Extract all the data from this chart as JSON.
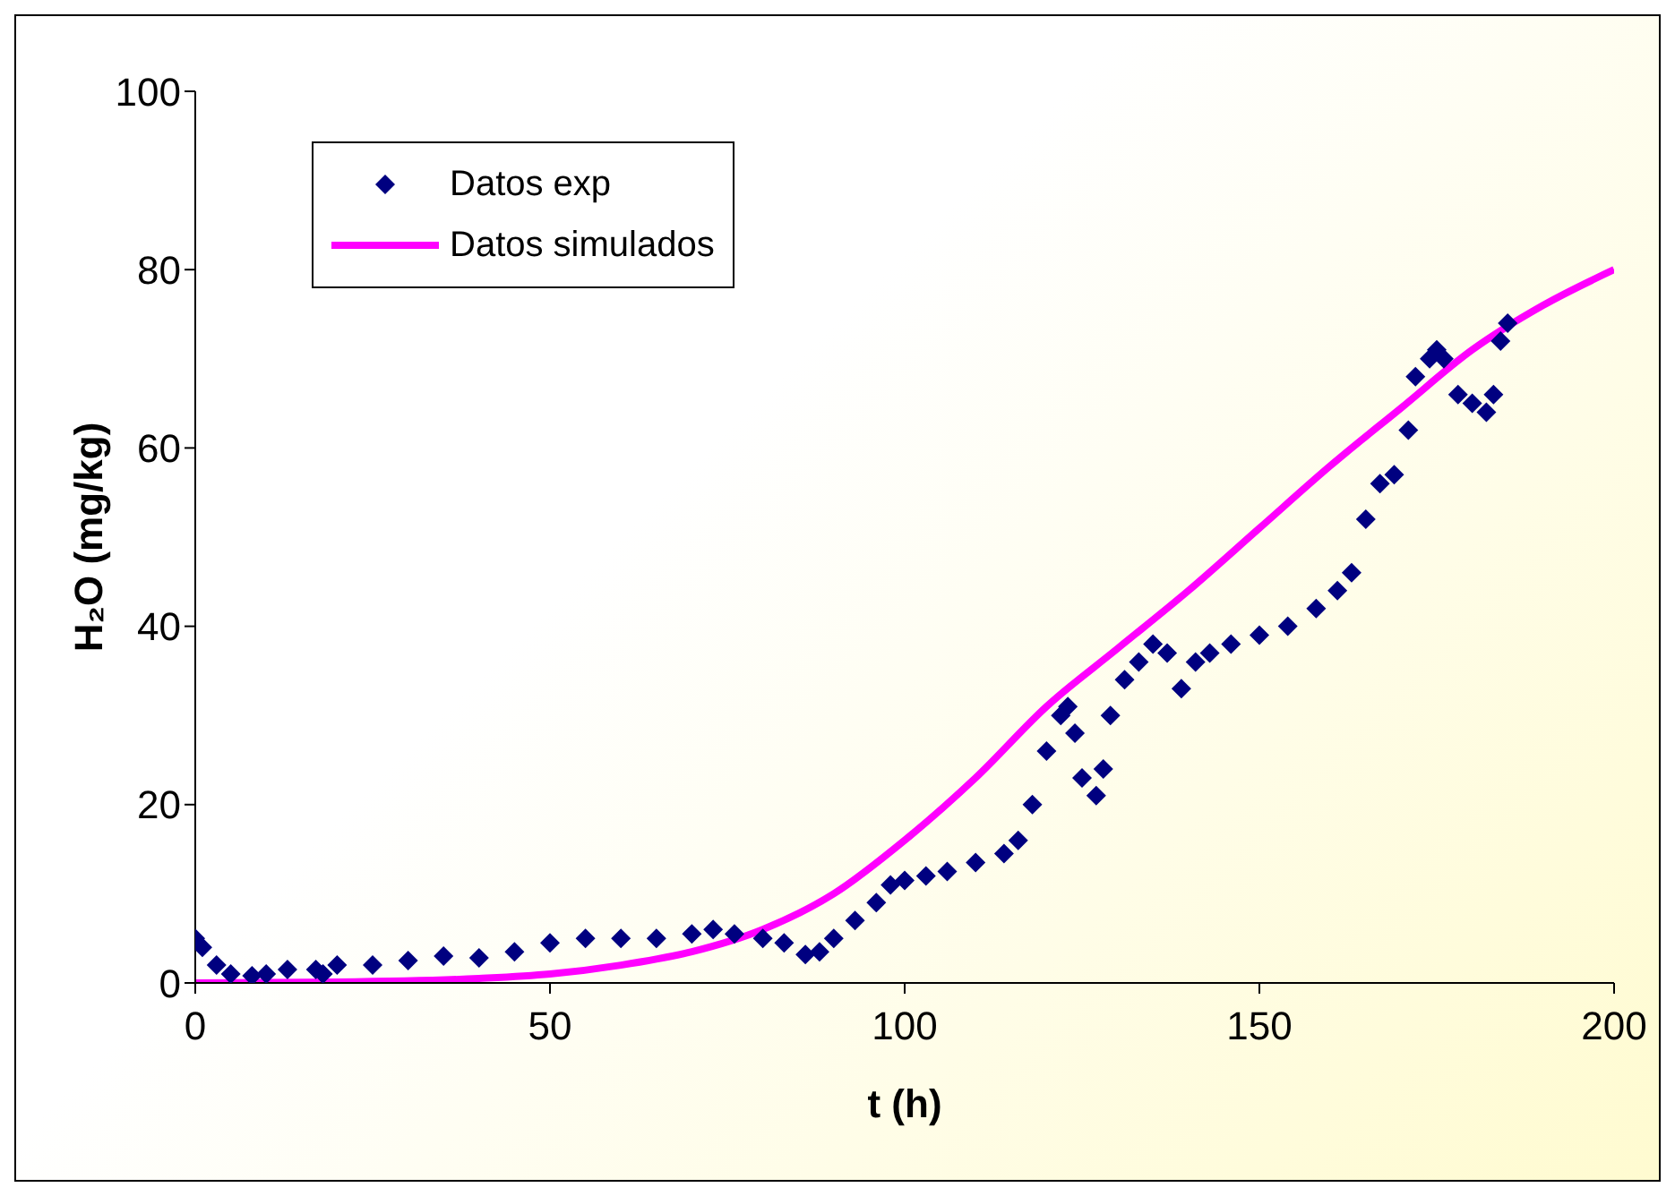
{
  "chart_data": {
    "type": "line",
    "xlabel": "t (h)",
    "ylabel": "H₂O (mg/kg)",
    "xlim": [
      0,
      200
    ],
    "xticks": [
      0,
      50,
      100,
      150,
      200
    ],
    "ylim": [
      0,
      100
    ],
    "yticks": [
      0,
      20,
      40,
      60,
      80,
      100
    ],
    "grid": false,
    "legend": "top left",
    "series": [
      {
        "name": "Datos exp",
        "type": "scatter",
        "marker": "diamond",
        "color": "#000080",
        "x": [
          0,
          1,
          3,
          5,
          8,
          10,
          13,
          17,
          18,
          20,
          25,
          30,
          35,
          40,
          45,
          50,
          55,
          60,
          65,
          70,
          73,
          76,
          80,
          83,
          86,
          88,
          90,
          93,
          96,
          98,
          100,
          103,
          106,
          110,
          114,
          116,
          118,
          120,
          122,
          123,
          124,
          125,
          127,
          128,
          129,
          131,
          133,
          135,
          137,
          139,
          141,
          143,
          146,
          150,
          154,
          158,
          161,
          163,
          165,
          167,
          169,
          171,
          172,
          174,
          175,
          176,
          178,
          180,
          182,
          183,
          184,
          185
        ],
        "values": [
          5,
          4,
          2,
          1,
          0.8,
          1,
          1.5,
          1.5,
          1,
          2,
          2,
          2.5,
          3,
          2.8,
          3.5,
          4.5,
          5,
          5,
          5,
          5.5,
          6,
          5.5,
          5,
          4.5,
          3.2,
          3.5,
          5,
          7,
          9,
          11,
          11.5,
          12,
          12.5,
          13.5,
          14.5,
          16,
          20,
          26,
          30,
          31,
          28,
          23,
          21,
          24,
          30,
          34,
          36,
          38,
          37,
          33,
          36,
          37,
          38,
          39,
          40,
          42,
          44,
          46,
          52,
          56,
          57,
          62,
          68,
          70,
          71,
          70,
          66,
          65,
          64,
          66,
          72,
          74
        ]
      },
      {
        "name": "Datos simulados",
        "marker": "none",
        "line_style": "solid",
        "color": "#ff00ff",
        "x": [
          0,
          20,
          40,
          50,
          60,
          70,
          80,
          90,
          100,
          110,
          120,
          130,
          140,
          150,
          160,
          170,
          180,
          190,
          200
        ],
        "values": [
          0,
          0.1,
          0.5,
          1,
          2,
          3.5,
          6,
          10,
          16,
          23,
          31,
          37.5,
          44,
          51,
          58,
          64.5,
          71,
          76,
          80
        ]
      }
    ]
  }
}
